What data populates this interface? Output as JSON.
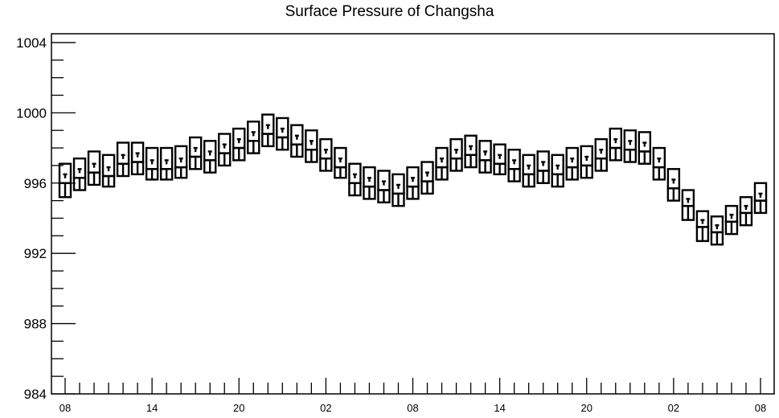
{
  "chart_data": {
    "type": "box",
    "title": "Surface Pressure of Changsha",
    "xlabel": "",
    "ylabel": "",
    "ylim": [
      984,
      1004.5
    ],
    "y_ticks": [
      1004,
      1000,
      996,
      992,
      988,
      984
    ],
    "y_tick_labels": [
      "1004",
      "1000",
      "996",
      "992",
      "988",
      "984"
    ],
    "x_tick_labels": [
      "08",
      "14",
      "20",
      "02",
      "08",
      "14",
      "20",
      "02",
      "08"
    ],
    "grid": false,
    "legend": "none",
    "colors": {
      "box": "#000000",
      "background": "#ffffff"
    },
    "series": [
      {
        "time": [
          "08",
          "09",
          "10",
          "11",
          "12",
          "13",
          "14",
          "15",
          "16",
          "17",
          "18",
          "19",
          "20",
          "21",
          "22",
          "23",
          "00",
          "01",
          "02",
          "03",
          "04",
          "05",
          "06",
          "07",
          "08",
          "09",
          "10",
          "11",
          "12",
          "13",
          "14",
          "15",
          "16",
          "17",
          "18",
          "19",
          "20",
          "21",
          "22",
          "23",
          "00",
          "01",
          "02",
          "03",
          "04",
          "05",
          "06",
          "07",
          "08"
        ],
        "max": [
          997.1,
          997.4,
          997.8,
          997.6,
          998.3,
          998.3,
          998.0,
          998.0,
          998.1,
          998.6,
          998.4,
          998.8,
          999.1,
          999.5,
          999.9,
          999.7,
          999.3,
          999.0,
          998.5,
          998.0,
          997.1,
          996.9,
          996.7,
          996.5,
          996.9,
          997.2,
          998.0,
          998.5,
          998.7,
          998.4,
          998.2,
          997.9,
          997.6,
          997.8,
          997.6,
          998.0,
          998.1,
          998.5,
          999.1,
          999.0,
          998.9,
          998.0,
          996.8,
          995.6,
          994.4,
          994.1,
          994.7,
          995.2,
          996.0
        ],
        "upper": [
          996.0,
          996.3,
          996.6,
          996.4,
          997.1,
          997.2,
          996.8,
          996.8,
          996.9,
          997.5,
          997.3,
          997.7,
          998.0,
          998.4,
          998.8,
          998.6,
          998.2,
          997.9,
          997.4,
          996.9,
          996.0,
          995.8,
          995.6,
          995.4,
          995.8,
          996.1,
          996.9,
          997.4,
          997.6,
          997.3,
          997.1,
          996.8,
          996.5,
          996.7,
          996.5,
          996.9,
          997.0,
          997.4,
          998.0,
          997.9,
          997.8,
          996.9,
          995.7,
          994.7,
          993.5,
          993.2,
          993.8,
          994.3,
          995.0
        ],
        "lower": [
          995.2,
          995.6,
          995.9,
          995.8,
          996.4,
          996.5,
          996.2,
          996.2,
          996.3,
          996.8,
          996.6,
          997.0,
          997.3,
          997.7,
          998.1,
          997.9,
          997.5,
          997.2,
          996.7,
          996.3,
          995.3,
          995.1,
          994.9,
          994.7,
          995.1,
          995.4,
          996.2,
          996.7,
          996.9,
          996.6,
          996.5,
          996.1,
          995.8,
          996.0,
          995.8,
          996.2,
          996.3,
          996.7,
          997.3,
          997.2,
          997.1,
          996.2,
          995.0,
          993.9,
          992.7,
          992.5,
          993.1,
          993.6,
          994.3
        ],
        "median": [
          996.5,
          996.8,
          997.1,
          996.9,
          997.6,
          997.7,
          997.3,
          997.3,
          997.4,
          998.0,
          997.8,
          998.2,
          998.5,
          998.9,
          999.3,
          999.1,
          998.7,
          998.4,
          997.9,
          997.4,
          996.5,
          996.3,
          996.1,
          995.9,
          996.3,
          996.6,
          997.4,
          997.9,
          998.1,
          997.8,
          997.6,
          997.3,
          997.0,
          997.2,
          997.0,
          997.4,
          997.5,
          997.9,
          998.5,
          998.4,
          998.3,
          997.4,
          996.2,
          995.1,
          993.9,
          993.6,
          994.2,
          994.7,
          995.4
        ]
      }
    ]
  }
}
